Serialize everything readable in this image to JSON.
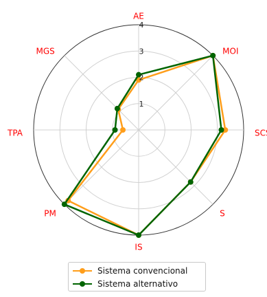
{
  "chart_data": {
    "type": "radar",
    "axes": [
      "AE",
      "MOI",
      "SCS",
      "S",
      "IS",
      "PM",
      "TPA",
      "MGS"
    ],
    "rlim": [
      0,
      4
    ],
    "r_ticks": [
      1,
      2,
      3,
      4
    ],
    "r_tick_labels": [
      "1",
      "2",
      "3",
      "4"
    ],
    "grid": true,
    "legend_position": "bottom",
    "series": [
      {
        "name": "Sistema convencional",
        "color": "#ff9e1b",
        "values": [
          1.9,
          4.0,
          3.3,
          2.8,
          4.0,
          3.8,
          0.6,
          1.1
        ]
      },
      {
        "name": "Sistema alternativo",
        "color": "#006400",
        "values": [
          2.1,
          4.0,
          3.15,
          2.8,
          4.0,
          4.0,
          0.9,
          1.15
        ]
      }
    ],
    "axis_label_color": "#ff0000",
    "grid_color": "#d0d0d0",
    "frame_color": "#333333"
  }
}
